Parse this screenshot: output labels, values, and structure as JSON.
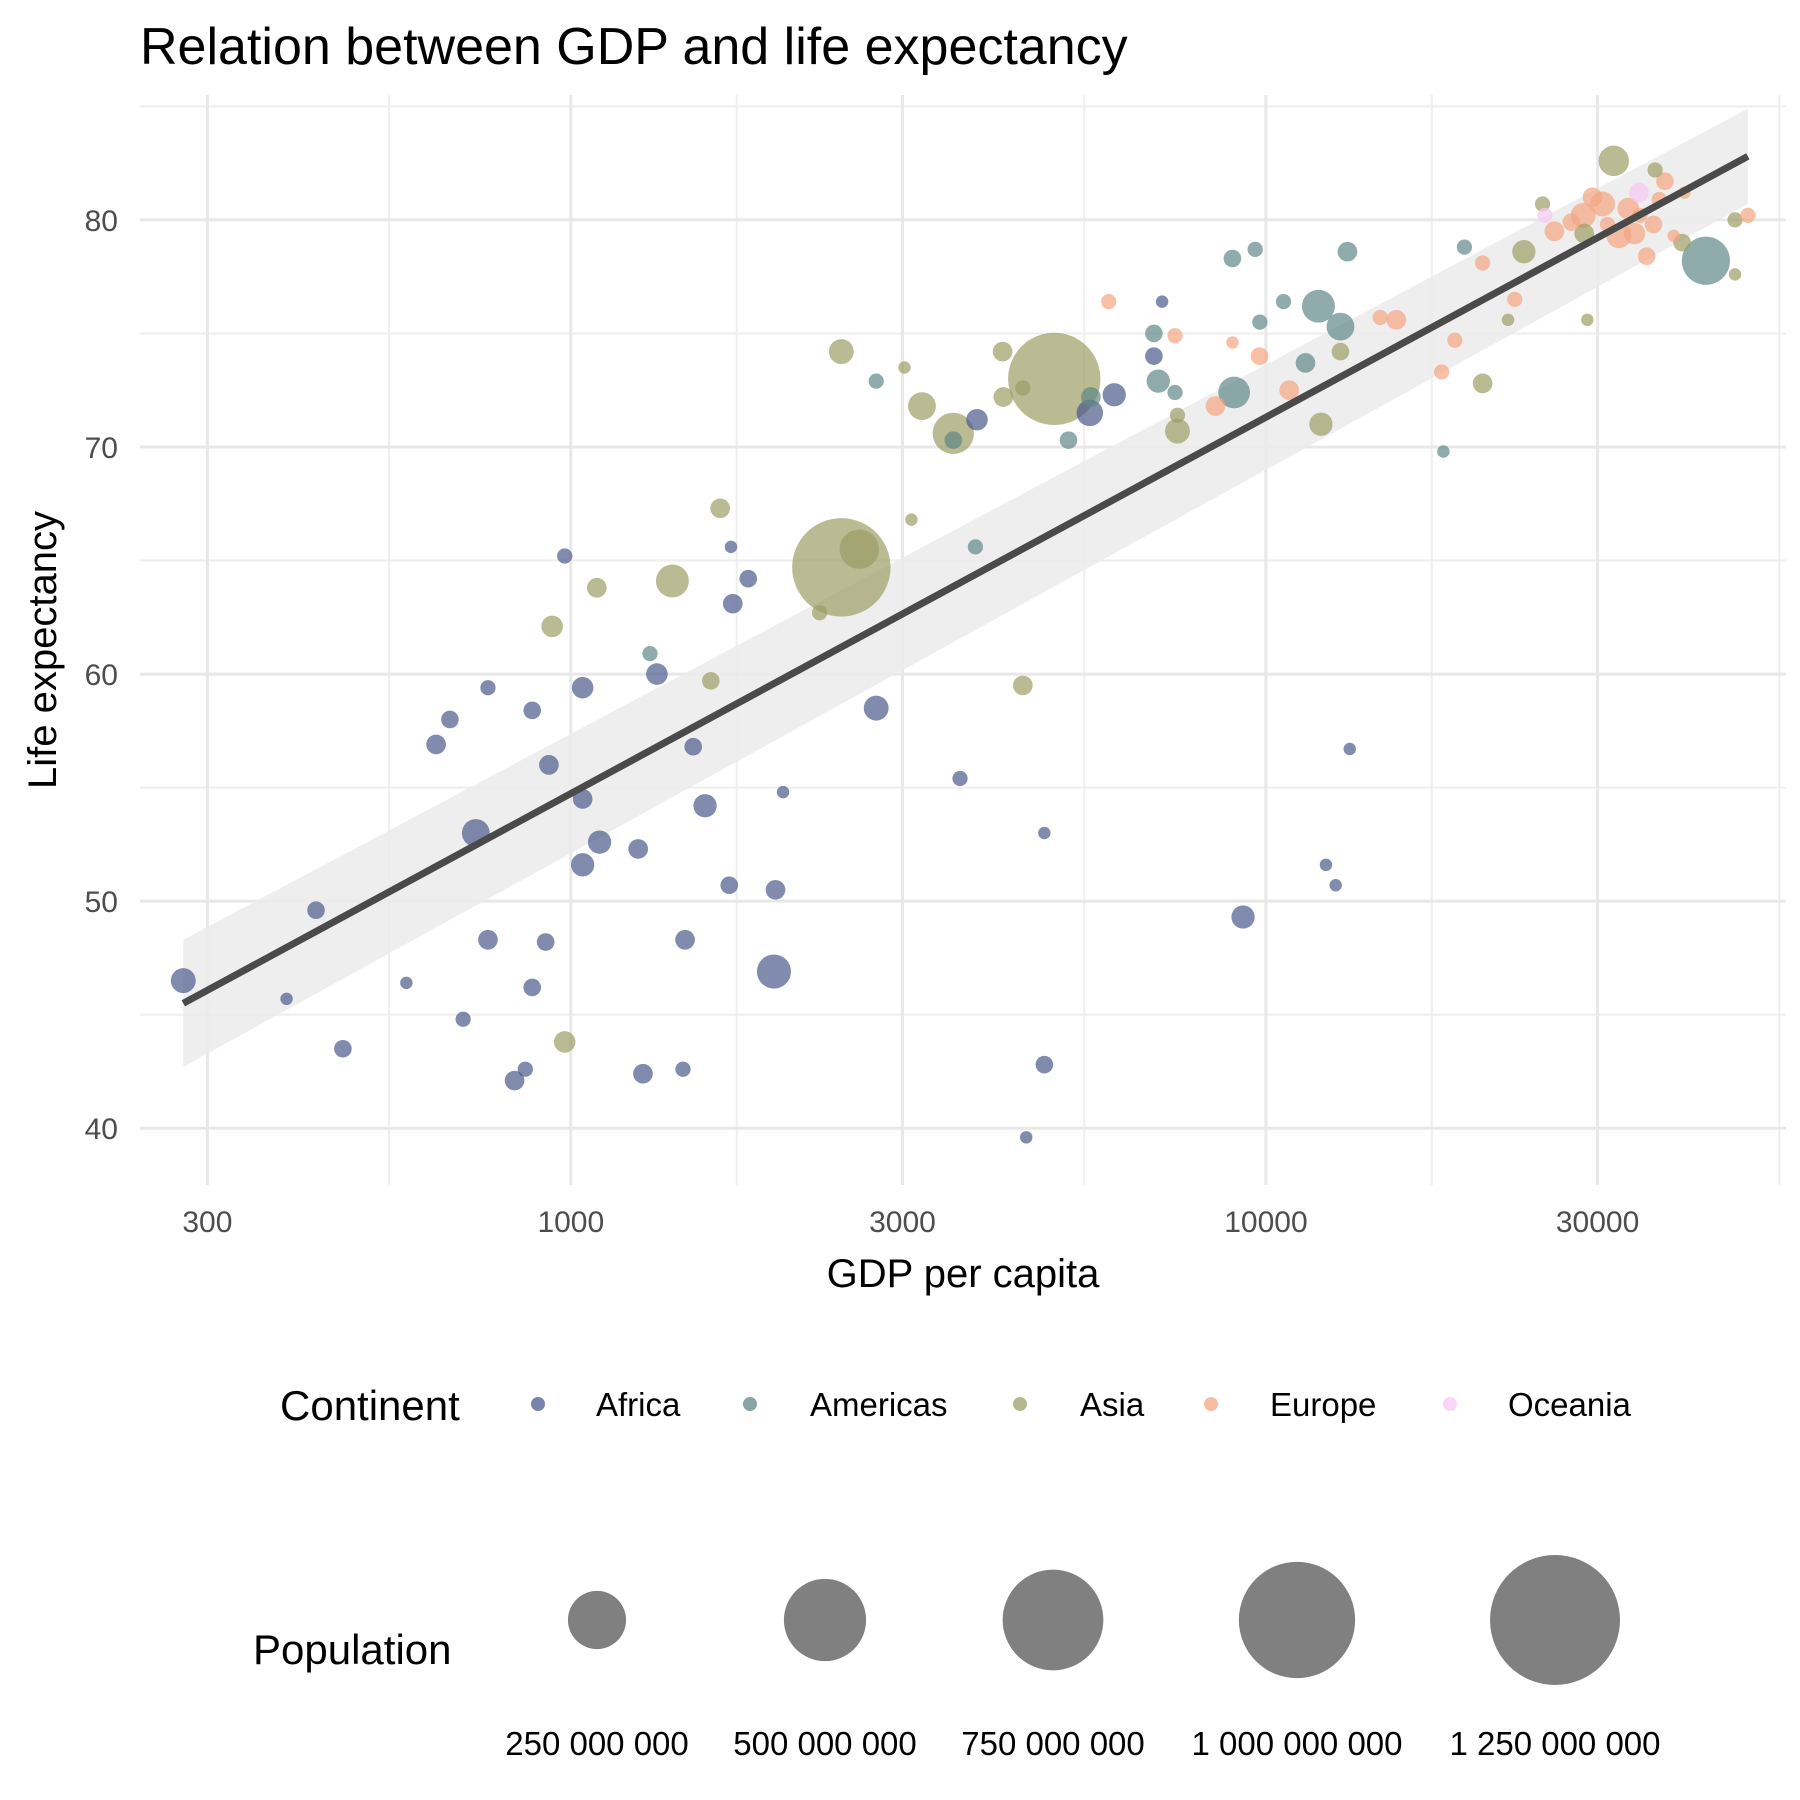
{
  "chart_data": {
    "type": "scatter",
    "title": "Relation between GDP and life expectancy",
    "xlabel": "GDP per capita",
    "ylabel": "Life expectancy",
    "x_scale": "log10",
    "xlim": [
      240,
      56000
    ],
    "ylim": [
      37.5,
      85.5
    ],
    "x_ticks": [
      300,
      1000,
      3000,
      10000,
      30000
    ],
    "x_tick_labels": [
      "300",
      "1000",
      "3000",
      "10000",
      "30000"
    ],
    "y_ticks": [
      40,
      50,
      60,
      70,
      80
    ],
    "y_tick_labels": [
      "40",
      "50",
      "60",
      "70",
      "80"
    ],
    "grid": true,
    "colors": {
      "Africa": "#4a5a8c",
      "Americas": "#5f8787",
      "Asia": "#9d9d65",
      "Europe": "#f4a582",
      "Oceania": "#f7c8f4",
      "trend": "#4a4a4a",
      "band": "#ebebeb"
    },
    "trend_line": {
      "x": [
        277,
        49357
      ],
      "y": [
        45.5,
        82.8
      ],
      "band_halfwidth": [
        2.8,
        2.1
      ]
    },
    "legend": {
      "position": "bottom",
      "continent": {
        "title": "Continent",
        "entries": [
          "Africa",
          "Americas",
          "Asia",
          "Europe",
          "Oceania"
        ]
      },
      "size": {
        "title": "Population",
        "values": [
          250000000,
          500000000,
          750000000,
          1000000000,
          1250000000
        ],
        "labels": [
          "250 000 000",
          "500 000 000",
          "750 000 000",
          "1 000 000 000",
          "1 250 000 000"
        ]
      }
    },
    "series": [
      {
        "name": "Africa",
        "points": [
          [
            277,
            46.5,
            8
          ],
          [
            430,
            49.6,
            4
          ],
          [
            390,
            45.7,
            2
          ],
          [
            470,
            43.5,
            4
          ],
          [
            640,
            56.9,
            5
          ],
          [
            670,
            58.0,
            4
          ],
          [
            760,
            59.4,
            3
          ],
          [
            730,
            53.0,
            10
          ],
          [
            700,
            44.8,
            3
          ],
          [
            760,
            48.3,
            5
          ],
          [
            580,
            46.4,
            2
          ],
          [
            880,
            58.4,
            4
          ],
          [
            930,
            56.0,
            5
          ],
          [
            980,
            65.2,
            3
          ],
          [
            920,
            48.2,
            4
          ],
          [
            880,
            46.2,
            4
          ],
          [
            860,
            42.6,
            3
          ],
          [
            830,
            42.1,
            5
          ],
          [
            1040,
            59.4,
            6
          ],
          [
            1040,
            54.5,
            5
          ],
          [
            1100,
            52.6,
            7
          ],
          [
            1040,
            51.6,
            7
          ],
          [
            1250,
            52.3,
            5
          ],
          [
            1270,
            42.4,
            5
          ],
          [
            1330,
            60.0,
            6
          ],
          [
            1500,
            56.8,
            4
          ],
          [
            1560,
            54.2,
            7
          ],
          [
            1700,
            65.6,
            2
          ],
          [
            1710,
            63.1,
            5
          ],
          [
            1800,
            64.2,
            4
          ],
          [
            1460,
            48.3,
            5
          ],
          [
            1690,
            50.7,
            4
          ],
          [
            1450,
            42.6,
            3
          ],
          [
            2020,
            54.8,
            2
          ],
          [
            1970,
            50.5,
            5
          ],
          [
            1960,
            46.9,
            15
          ],
          [
            2750,
            58.5,
            8
          ],
          [
            3630,
            55.4,
            3
          ],
          [
            3840,
            71.2,
            6
          ],
          [
            4520,
            39.6,
            2
          ],
          [
            4800,
            53.0,
            2
          ],
          [
            4800,
            42.8,
            4
          ],
          [
            5580,
            71.5,
            9
          ],
          [
            6050,
            72.3,
            7
          ],
          [
            6900,
            74.0,
            4
          ],
          [
            7090,
            76.4,
            2
          ],
          [
            9270,
            49.3,
            7
          ],
          [
            12200,
            51.6,
            2
          ],
          [
            12600,
            50.7,
            2
          ],
          [
            13200,
            56.7,
            2
          ]
        ]
      },
      {
        "name": "Americas",
        "points": [
          [
            2750,
            72.9,
            3
          ],
          [
            1300,
            60.9,
            3
          ],
          [
            3820,
            65.6,
            3
          ],
          [
            3550,
            70.3,
            4
          ],
          [
            5200,
            70.3,
            4
          ],
          [
            5600,
            72.2,
            5
          ],
          [
            6900,
            75.0,
            4
          ],
          [
            7000,
            72.9,
            7
          ],
          [
            7400,
            72.4,
            3
          ],
          [
            8950,
            78.3,
            4
          ],
          [
            9000,
            72.4,
            13
          ],
          [
            9650,
            78.7,
            3
          ],
          [
            9800,
            75.5,
            3
          ],
          [
            10600,
            76.4,
            3
          ],
          [
            11400,
            73.7,
            5
          ],
          [
            11900,
            76.2,
            14
          ],
          [
            12800,
            75.3,
            10
          ],
          [
            13100,
            78.6,
            5
          ],
          [
            18000,
            69.8,
            2
          ],
          [
            19300,
            78.8,
            3
          ],
          [
            42950,
            78.2,
            30
          ]
        ]
      },
      {
        "name": "Asia",
        "points": [
          [
            980,
            43.8,
            6
          ],
          [
            940,
            62.1,
            6
          ],
          [
            1090,
            63.8,
            5
          ],
          [
            1400,
            64.1,
            14
          ],
          [
            1590,
            59.7,
            4
          ],
          [
            1640,
            67.3,
            5
          ],
          [
            2450,
            64.7,
            125
          ],
          [
            2600,
            65.5,
            20
          ],
          [
            2280,
            62.7,
            3
          ],
          [
            2450,
            74.2,
            8
          ],
          [
            3090,
            66.8,
            2
          ],
          [
            3020,
            73.5,
            2
          ],
          [
            3200,
            71.8,
            10
          ],
          [
            3550,
            70.6,
            22
          ],
          [
            4190,
            72.2,
            5
          ],
          [
            4180,
            74.2,
            5
          ],
          [
            4470,
            72.6,
            3
          ],
          [
            4960,
            73.0,
            110
          ],
          [
            4470,
            59.5,
            5
          ],
          [
            7460,
            70.7,
            8
          ],
          [
            7460,
            71.4,
            3
          ],
          [
            12000,
            71.0,
            7
          ],
          [
            12800,
            74.2,
            4
          ],
          [
            20500,
            72.8,
            5
          ],
          [
            22300,
            75.6,
            2
          ],
          [
            23500,
            78.6,
            7
          ],
          [
            25000,
            80.7,
            3
          ],
          [
            28700,
            79.4,
            5
          ],
          [
            29000,
            75.6,
            2
          ],
          [
            31650,
            82.6,
            12
          ],
          [
            36300,
            82.2,
            3
          ],
          [
            39700,
            79.0,
            4
          ],
          [
            47300,
            80.0,
            3
          ],
          [
            47300,
            77.6,
            2
          ]
        ]
      },
      {
        "name": "Europe",
        "points": [
          [
            5940,
            76.4,
            3
          ],
          [
            7400,
            74.9,
            3
          ],
          [
            8460,
            71.8,
            5
          ],
          [
            8950,
            74.6,
            2
          ],
          [
            9790,
            74.0,
            4
          ],
          [
            10800,
            72.5,
            5
          ],
          [
            14600,
            75.7,
            3
          ],
          [
            15400,
            75.6,
            5
          ],
          [
            17900,
            73.3,
            3
          ],
          [
            18700,
            74.7,
            3
          ],
          [
            20500,
            78.1,
            3
          ],
          [
            22800,
            76.5,
            3
          ],
          [
            26000,
            79.5,
            5
          ],
          [
            27500,
            79.9,
            4
          ],
          [
            28600,
            80.2,
            8
          ],
          [
            29500,
            81.0,
            5
          ],
          [
            30500,
            80.7,
            8
          ],
          [
            31000,
            79.8,
            3
          ],
          [
            32200,
            79.3,
            8
          ],
          [
            33200,
            80.5,
            6
          ],
          [
            33900,
            79.4,
            6
          ],
          [
            34500,
            80.2,
            3
          ],
          [
            35300,
            78.4,
            4
          ],
          [
            36100,
            79.8,
            4
          ],
          [
            36800,
            80.9,
            3
          ],
          [
            37500,
            81.7,
            4
          ],
          [
            38600,
            79.3,
            2
          ],
          [
            40000,
            81.2,
            2
          ],
          [
            49357,
            80.2,
            3
          ]
        ]
      },
      {
        "name": "Oceania",
        "points": [
          [
            25200,
            80.2,
            3
          ],
          [
            34400,
            81.2,
            5
          ]
        ]
      }
    ]
  }
}
